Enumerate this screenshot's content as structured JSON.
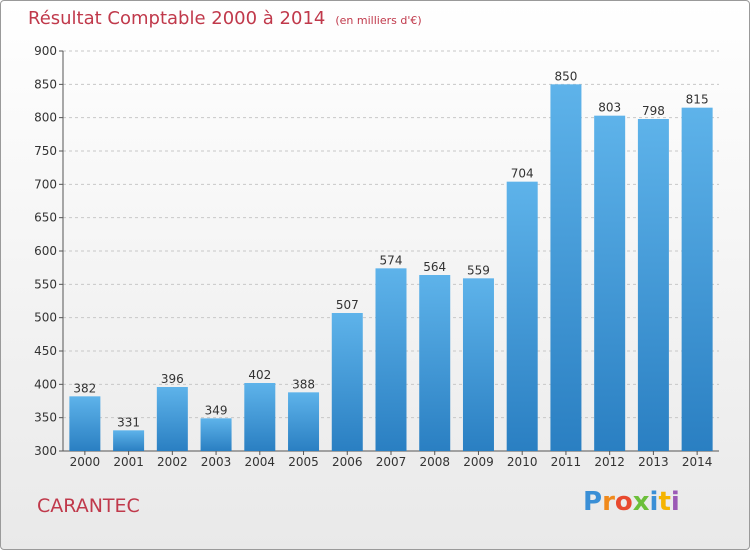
{
  "header": {
    "title": "Résultat Comptable 2000 à 2014",
    "unit": "(en milliers d'€)"
  },
  "commune": "CARANTEC",
  "logo": {
    "text": "Proxiti"
  },
  "colors": {
    "bar_top": "#5eb3ea",
    "bar_bottom": "#2a7fc2",
    "title": "#c0394b",
    "grid": "#c8c8c8"
  },
  "chart_data": {
    "type": "bar",
    "categories": [
      "2000",
      "2001",
      "2002",
      "2003",
      "2004",
      "2005",
      "2006",
      "2007",
      "2008",
      "2009",
      "2010",
      "2011",
      "2012",
      "2013",
      "2014"
    ],
    "values": [
      382,
      331,
      396,
      349,
      402,
      388,
      507,
      574,
      564,
      559,
      704,
      850,
      803,
      798,
      815
    ],
    "ylim": [
      300,
      900
    ],
    "yticks": [
      300,
      350,
      400,
      450,
      500,
      550,
      600,
      650,
      700,
      750,
      800,
      850,
      900
    ],
    "grid": true,
    "data_labels": true
  }
}
